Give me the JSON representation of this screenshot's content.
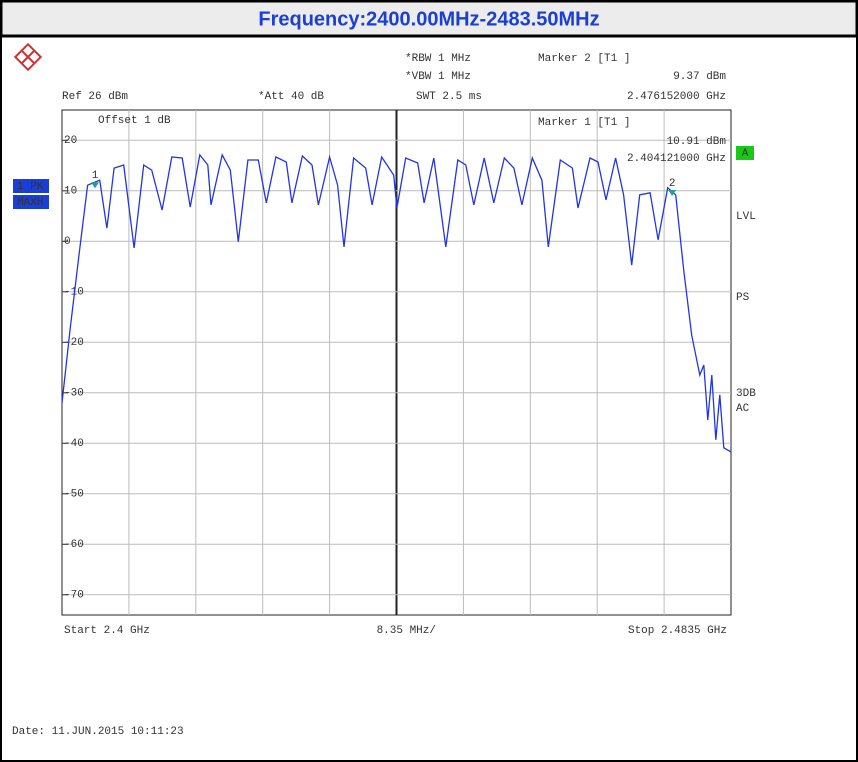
{
  "chart_data": {
    "type": "line",
    "title": "Frequency:2400.00MHz-2483.50MHz",
    "annotations": [
      "Ref 26 dBm",
      "*Att 40 dB",
      "*RBW 1 MHz",
      "*VBW 1 MHz",
      "SWT 2.5 ms",
      "Marker 2 [T1 ]",
      "9.37 dBm",
      "2.476152000 GHz",
      "Offset 1 dB",
      "Marker 1 [T1 ]",
      "10.91 dBm",
      "2.404121000 GHz",
      "1 PK",
      "MAXH",
      "A",
      "LVL",
      "PS",
      "3DB",
      "AC",
      "Start 2.4 GHz",
      "8.35 MHz/",
      "Stop 2.4835 GHz",
      "Date: 11.JUN.2015  10:11:23"
    ],
    "xlim": [
      2.4,
      2.4835
    ],
    "ylim": [
      -74,
      26
    ],
    "yticks": [
      20,
      10,
      0,
      -10,
      -20,
      -30,
      -40,
      -50,
      -60,
      -70
    ],
    "grid": true,
    "x": [
      2.4,
      2.401,
      2.4022,
      2.4032,
      2.4047,
      2.4056,
      2.4065,
      2.4077,
      2.409,
      2.4102,
      2.4112,
      2.4125,
      2.4137,
      2.415,
      2.416,
      2.4172,
      2.4182,
      2.4186,
      2.42,
      2.421,
      2.422,
      2.4232,
      2.4245,
      2.4255,
      2.4267,
      2.428,
      2.4287,
      2.43,
      2.4312,
      2.432,
      2.4334,
      2.4344,
      2.4352,
      2.4364,
      2.4379,
      2.4387,
      2.4399,
      2.4414,
      2.4418,
      2.4429,
      2.4444,
      2.4452,
      2.4464,
      2.4479,
      2.4494,
      2.4504,
      2.4514,
      2.4527,
      2.4539,
      2.4552,
      2.4564,
      2.4574,
      2.4587,
      2.4599,
      2.4607,
      2.4622,
      2.4637,
      2.4644,
      2.4659,
      2.4669,
      2.4679,
      2.4691,
      2.4701,
      2.4711,
      2.4721,
      2.4734,
      2.4744,
      2.4756,
      2.4766,
      2.4776,
      2.4786,
      2.4796,
      2.4801,
      2.4806,
      2.4811,
      2.4816,
      2.4821,
      2.4826,
      2.4835
    ],
    "series": [
      {
        "color": "#2236e0",
        "values": [
          -32.0,
          -17.6,
          -1.7,
          11.1,
          12.1,
          2.6,
          14.5,
          15.1,
          -1.3,
          15.1,
          14.1,
          6.2,
          16.7,
          16.5,
          6.8,
          17.1,
          15.1,
          7.2,
          17.1,
          14.1,
          -0.1,
          16.1,
          16.1,
          7.6,
          16.7,
          15.7,
          7.6,
          16.9,
          15.1,
          7.2,
          16.7,
          11.1,
          -1.1,
          16.5,
          14.5,
          7.2,
          16.7,
          13.1,
          6.6,
          16.5,
          15.5,
          7.6,
          16.5,
          -1.1,
          16.1,
          15.1,
          7.2,
          16.5,
          7.6,
          16.5,
          14.5,
          7.2,
          16.5,
          12.1,
          -1.1,
          16.1,
          14.5,
          6.6,
          16.5,
          15.7,
          8.2,
          16.5,
          9.2,
          -4.7,
          9.2,
          9.6,
          0.3,
          10.6,
          9.2,
          -5.7,
          -18.6,
          -26.5,
          -24.5,
          -35.4,
          -26.5,
          -39.3,
          -30.4,
          -40.9,
          -41.7
        ]
      }
    ],
    "markers": [
      {
        "label": "1",
        "x": 2.404121,
        "value": 10.91
      },
      {
        "label": "2",
        "x": 2.476152,
        "value": 9.37
      }
    ],
    "marker_color": "#2a9a9a"
  }
}
